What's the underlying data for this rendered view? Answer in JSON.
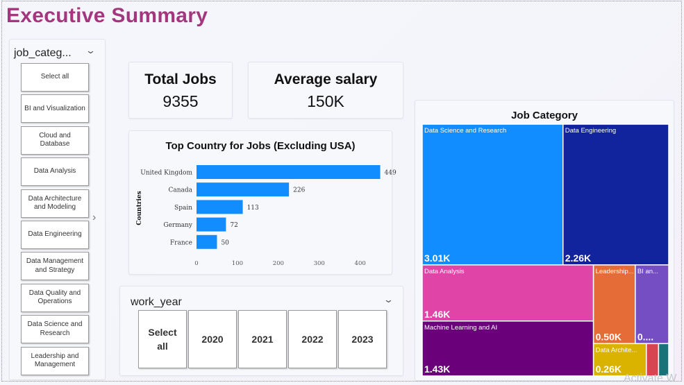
{
  "title": "Executive Summary",
  "job_category_slicer": {
    "header": "job_categ...",
    "items": [
      "Select all",
      "BI and Visualization",
      "Cloud and Database",
      "Data Analysis",
      "Data Architecture and Modeling",
      "Data Engineering",
      "Data Management and Strategy",
      "Data Quality and Operations",
      "Data Science and Research",
      "Leadership and Management"
    ]
  },
  "kpis": {
    "total_jobs": {
      "label": "Total Jobs",
      "value": "9355"
    },
    "average_salary": {
      "label": "Average salary",
      "value": "150K"
    }
  },
  "work_year_slicer": {
    "header": "work_year",
    "items": [
      "Select all",
      "2020",
      "2021",
      "2022",
      "2023"
    ]
  },
  "chart_data": [
    {
      "type": "bar",
      "orientation": "horizontal",
      "title": "Top Country for Jobs (Excluding USA)",
      "ylabel": "Countries",
      "xlabel": "",
      "categories": [
        "United Kingdom",
        "Canada",
        "Spain",
        "Germany",
        "France"
      ],
      "values": [
        449,
        226,
        113,
        72,
        50
      ],
      "x_ticks": [
        0,
        100,
        200,
        300,
        400
      ],
      "xlim": [
        0,
        460
      ],
      "grid": false,
      "color": "#118dff"
    },
    {
      "type": "treemap",
      "title": "Job Category",
      "items": [
        {
          "name": "Data Science and Research",
          "label": "3.01K",
          "value": 3010,
          "color": "#118dff"
        },
        {
          "name": "Data Engineering",
          "label": "2.26K",
          "value": 2260,
          "color": "#12239e"
        },
        {
          "name": "Data Analysis",
          "label": "1.46K",
          "value": 1460,
          "color": "#e044a7"
        },
        {
          "name": "Machine Learning and AI",
          "label": "1.43K",
          "value": 1430,
          "color": "#6b007b"
        },
        {
          "name": "Leadership...",
          "label": "0.50K",
          "value": 500,
          "color": "#e66c37"
        },
        {
          "name": "BI an...",
          "label": "0....",
          "value": 400,
          "color": "#744ec2"
        },
        {
          "name": "Data Archite...",
          "label": "0.26K",
          "value": 260,
          "color": "#d9b300"
        },
        {
          "name": "",
          "label": "",
          "value": 60,
          "color": "#d64550"
        },
        {
          "name": "",
          "label": "",
          "value": 50,
          "color": "#197278"
        }
      ]
    }
  ],
  "watermark": "Activate W"
}
